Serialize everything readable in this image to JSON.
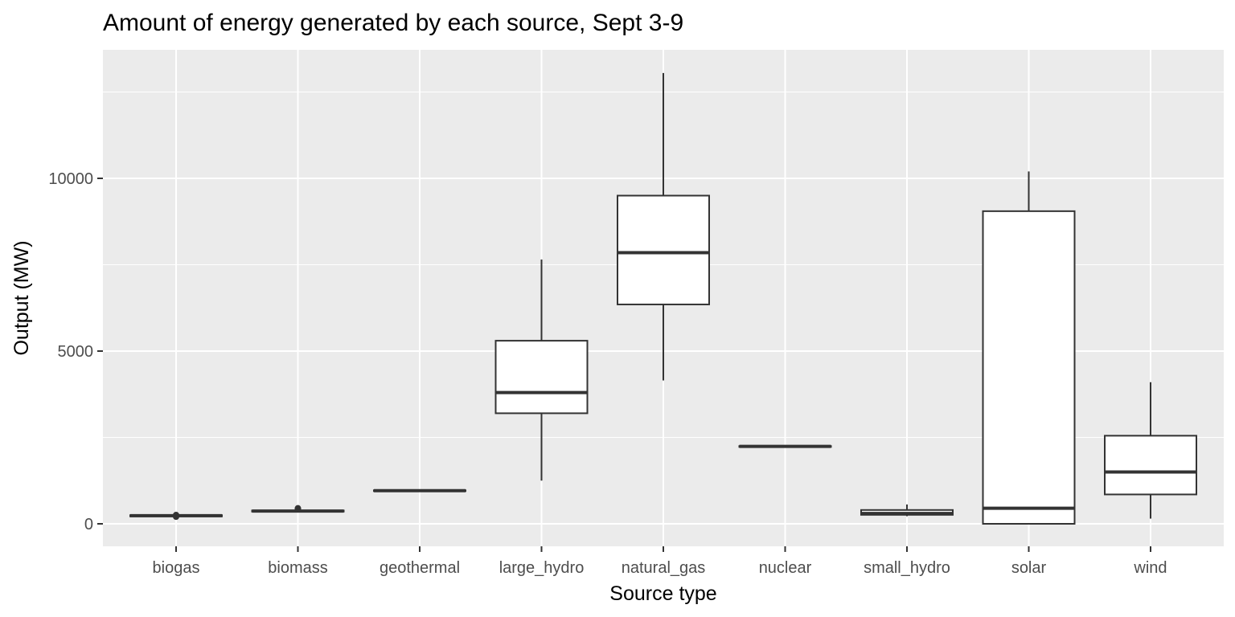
{
  "chart_data": {
    "type": "box",
    "title": "Amount of energy generated by each source, Sept 3-9",
    "xlabel": "Source type",
    "ylabel": "Output (MW)",
    "ylim": [
      -650,
      13800
    ],
    "yticks": [
      0,
      5000,
      10000
    ],
    "grid": true,
    "legend": "none",
    "colors": {
      "panel": "#ebebeb",
      "grid": "#ffffff",
      "box_fill": "#ffffff",
      "box_line": "#333333",
      "tick_text": "#4d4d4d"
    },
    "categories": [
      "biogas",
      "biomass",
      "geothermal",
      "large_hydro",
      "natural_gas",
      "nuclear",
      "small_hydro",
      "solar",
      "wind"
    ],
    "boxes": [
      {
        "name": "biogas",
        "whisker_low": 200,
        "q1": 215,
        "median": 235,
        "q3": 250,
        "whisker_high": 265,
        "outliers": [
          205,
          255
        ]
      },
      {
        "name": "biomass",
        "whisker_low": 345,
        "q1": 355,
        "median": 370,
        "q3": 385,
        "whisker_high": 395,
        "outliers": [
          430,
          450
        ]
      },
      {
        "name": "geothermal",
        "whisker_low": 945,
        "q1": 950,
        "median": 960,
        "q3": 970,
        "whisker_high": 975,
        "outliers": []
      },
      {
        "name": "large_hydro",
        "whisker_low": 1250,
        "q1": 3200,
        "median": 3800,
        "q3": 5300,
        "whisker_high": 7650,
        "outliers": []
      },
      {
        "name": "natural_gas",
        "whisker_low": 4150,
        "q1": 6350,
        "median": 7850,
        "q3": 9500,
        "whisker_high": 13050,
        "outliers": []
      },
      {
        "name": "nuclear",
        "whisker_low": 2220,
        "q1": 2230,
        "median": 2240,
        "q3": 2250,
        "whisker_high": 2260,
        "outliers": []
      },
      {
        "name": "small_hydro",
        "whisker_low": 220,
        "q1": 260,
        "median": 300,
        "q3": 400,
        "whisker_high": 560,
        "outliers": []
      },
      {
        "name": "solar",
        "whisker_low": 0,
        "q1": 0,
        "median": 450,
        "q3": 9050,
        "whisker_high": 10200,
        "outliers": []
      },
      {
        "name": "wind",
        "whisker_low": 150,
        "q1": 850,
        "median": 1500,
        "q3": 2550,
        "whisker_high": 4100,
        "outliers": []
      }
    ]
  }
}
